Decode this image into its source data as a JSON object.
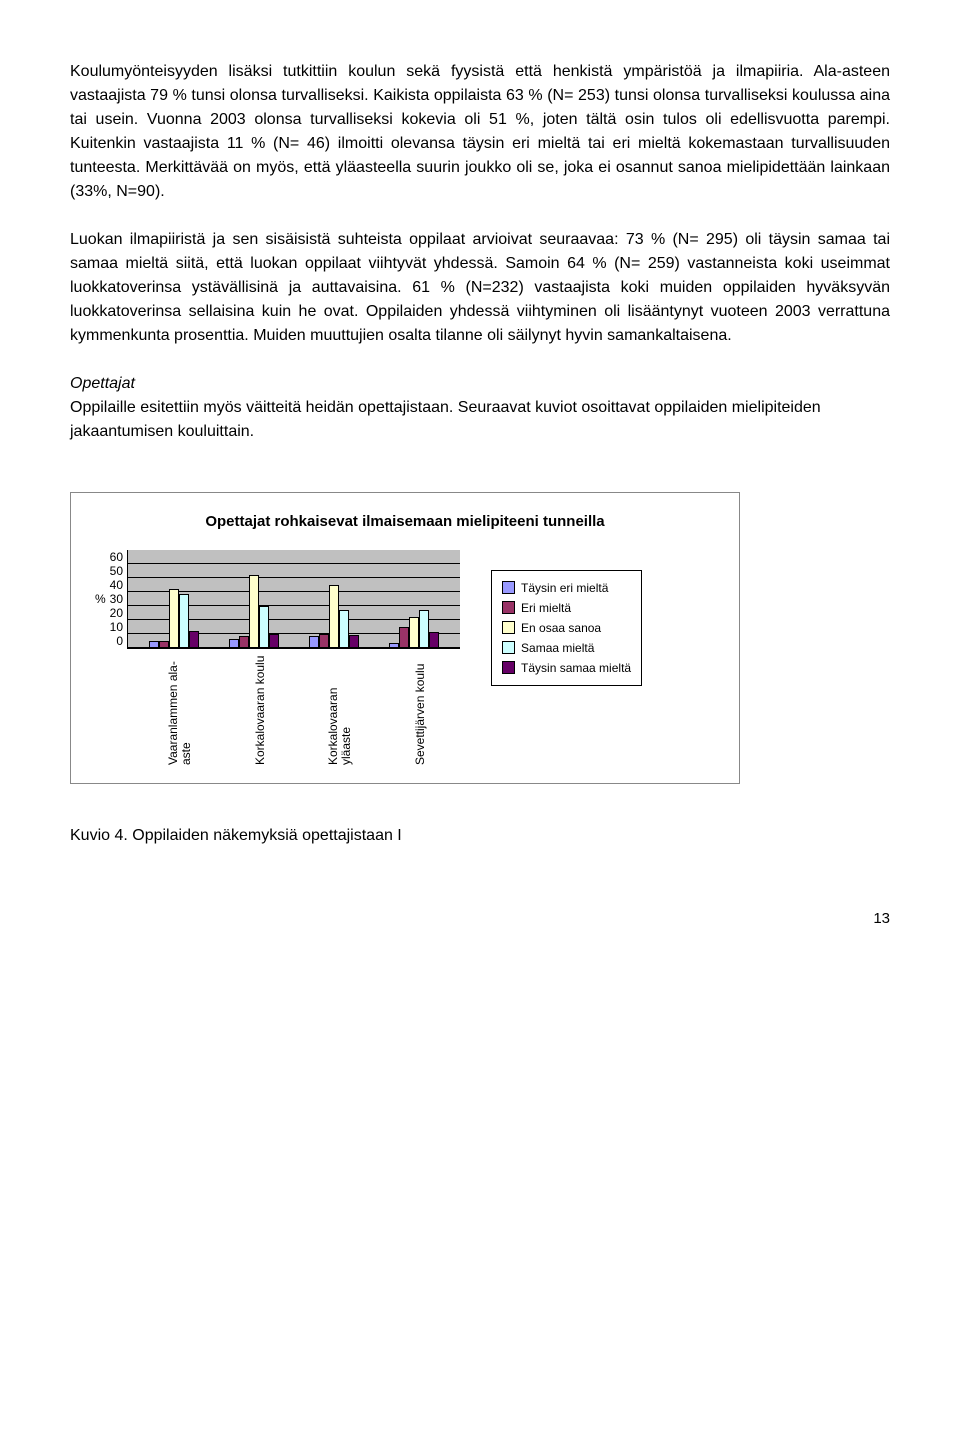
{
  "paragraphs": {
    "p1": "Koulumyönteisyyden lisäksi tutkittiin koulun sekä fyysistä että henkistä ympäristöä ja ilmapiiria. Ala-asteen vastaajista 79 % tunsi olonsa turvalliseksi. Kaikista oppilaista 63 % (N= 253) tunsi olonsa turvalliseksi koulussa aina tai usein. Vuonna 2003 olonsa turvalliseksi kokevia oli 51 %, joten tältä osin tulos oli edellisvuotta parempi. Kuitenkin vastaajista 11 % (N= 46) ilmoitti olevansa täysin eri mieltä tai eri mieltä kokemastaan turvallisuuden tunteesta. Merkittävää on myös, että yläasteella suurin joukko oli se, joka ei osannut sanoa mielipidettään lainkaan (33%, N=90).",
    "p2": "Luokan ilmapiiristä ja sen sisäisistä suhteista oppilaat arvioivat seuraavaa: 73 %  (N= 295) oli täysin samaa tai samaa mieltä siitä, että luokan oppilaat viihtyvät yhdessä. Samoin  64 % (N= 259) vastanneista koki useimmat luokkatoverinsa ystävällisinä ja auttavaisina. 61 % (N=232) vastaajista koki muiden oppilaiden hyväksyvän luokkatoverinsa sellaisina kuin he ovat. Oppilaiden yhdessä viihtyminen oli lisääntynyt vuoteen 2003 verrattuna kymmenkunta prosenttia. Muiden muuttujien osalta tilanne oli säilynyt hyvin samankaltaisena.",
    "sub_heading": "Opettajat",
    "p3": "Oppilaille esitettiin myös väitteitä heidän opettajistaan. Seuraavat kuviot osoittavat oppilaiden mielipiteiden jakaantumisen kouluittain."
  },
  "chart": {
    "type": "bar",
    "title": "Opettajat rohkaisevat ilmaisemaan mielipiteeni tunneilla",
    "y_label": "%",
    "y_ticks": [
      60,
      50,
      40,
      30,
      20,
      10,
      0
    ],
    "ylim_max": 70,
    "background_color": "#c0c0c0",
    "categories": [
      "Vaaranlammen ala-aste",
      "Korkalovaaran koulu",
      "Korkalovaaran yläaste",
      "Sevettijärven koulu"
    ],
    "series": [
      {
        "label": "Täysin eri mieltä",
        "color": "#9999ff"
      },
      {
        "label": "Eri mieltä",
        "color": "#993366"
      },
      {
        "label": "En osaa sanoa",
        "color": "#ffffcc"
      },
      {
        "label": "Samaa mieltä",
        "color": "#ccffff"
      },
      {
        "label": "Täysin samaa mieltä",
        "color": "#660066"
      }
    ],
    "data": [
      [
        5,
        5,
        42,
        38,
        12
      ],
      [
        6,
        8,
        52,
        30,
        10
      ],
      [
        8,
        10,
        45,
        27,
        9
      ],
      [
        3,
        15,
        22,
        27,
        11
      ]
    ]
  },
  "caption": "Kuvio 4. Oppilaiden näkemyksiä opettajistaan I",
  "page_number": "13"
}
